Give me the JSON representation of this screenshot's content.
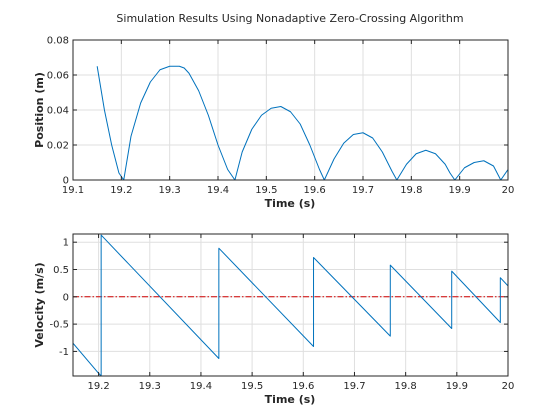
{
  "figure": {
    "title": "Simulation Results Using Nonadaptive Zero-Crossing Algorithm"
  },
  "chart_data": [
    {
      "type": "line",
      "xlabel": "Time (s)",
      "ylabel": "Position (m)",
      "xlim": [
        19.1,
        20
      ],
      "ylim": [
        0,
        0.08
      ],
      "xticks": [
        19.1,
        19.2,
        19.3,
        19.4,
        19.5,
        19.6,
        19.7,
        19.8,
        19.9,
        20
      ],
      "xtick_labels": [
        "19.1",
        "19.2",
        "19.3",
        "19.4",
        "19.5",
        "19.6",
        "19.7",
        "19.8",
        "19.9",
        "20"
      ],
      "yticks": [
        0,
        0.02,
        0.04,
        0.06,
        0.08
      ],
      "ytick_labels": [
        "0",
        "0.02",
        "0.04",
        "0.06",
        "0.08"
      ],
      "grid": true,
      "color": "#0072bd",
      "series": [
        {
          "x": [
            19.15,
            19.165,
            19.18,
            19.195,
            19.205,
            19.22,
            19.24,
            19.26,
            19.28,
            19.3,
            19.32,
            19.33,
            19.34,
            19.36,
            19.38,
            19.4,
            19.42,
            19.435,
            19.45,
            19.47,
            19.49,
            19.51,
            19.53,
            19.55,
            19.57,
            19.59,
            19.61,
            19.62,
            19.64,
            19.66,
            19.68,
            19.7,
            19.72,
            19.74,
            19.76,
            19.77,
            19.79,
            19.81,
            19.83,
            19.85,
            19.87,
            19.88,
            19.89,
            19.91,
            19.93,
            19.95,
            19.97,
            19.985,
            20.0
          ],
          "y": [
            0.065,
            0.04,
            0.02,
            0.004,
            0.0,
            0.025,
            0.044,
            0.056,
            0.063,
            0.065,
            0.065,
            0.064,
            0.061,
            0.051,
            0.037,
            0.02,
            0.006,
            0.0,
            0.016,
            0.029,
            0.037,
            0.041,
            0.042,
            0.039,
            0.032,
            0.02,
            0.006,
            0.0,
            0.012,
            0.021,
            0.026,
            0.027,
            0.024,
            0.016,
            0.005,
            0.0,
            0.009,
            0.015,
            0.017,
            0.015,
            0.009,
            0.004,
            0.0,
            0.007,
            0.01,
            0.011,
            0.008,
            0.0,
            0.006
          ]
        }
      ]
    },
    {
      "type": "line",
      "xlabel": "Time (s)",
      "ylabel": "Velocity (m/s)",
      "xlim": [
        19.15,
        20
      ],
      "ylim": [
        -1.45,
        1.15
      ],
      "xticks": [
        19.2,
        19.3,
        19.4,
        19.5,
        19.6,
        19.7,
        19.8,
        19.9,
        20
      ],
      "xtick_labels": [
        "19.2",
        "19.3",
        "19.4",
        "19.5",
        "19.6",
        "19.7",
        "19.8",
        "19.9",
        "20"
      ],
      "yticks": [
        -1,
        -0.5,
        0,
        0.5,
        1
      ],
      "ytick_labels": [
        "-1",
        "-0.5",
        "0",
        "0.5",
        "1"
      ],
      "grid": true,
      "color": "#0072bd",
      "reference_line": {
        "y": 0,
        "color": "#d00000",
        "style": "dash-dot"
      },
      "series": [
        {
          "x": [
            19.15,
            19.2,
            19.205,
            19.205,
            19.435,
            19.435,
            19.62,
            19.62,
            19.77,
            19.77,
            19.89,
            19.89,
            19.985,
            19.985,
            20.0
          ],
          "y": [
            -0.85,
            -1.4,
            -1.45,
            1.13,
            -1.13,
            0.89,
            -0.91,
            0.72,
            -0.72,
            0.58,
            -0.58,
            0.47,
            -0.47,
            0.35,
            0.2
          ]
        }
      ]
    }
  ]
}
